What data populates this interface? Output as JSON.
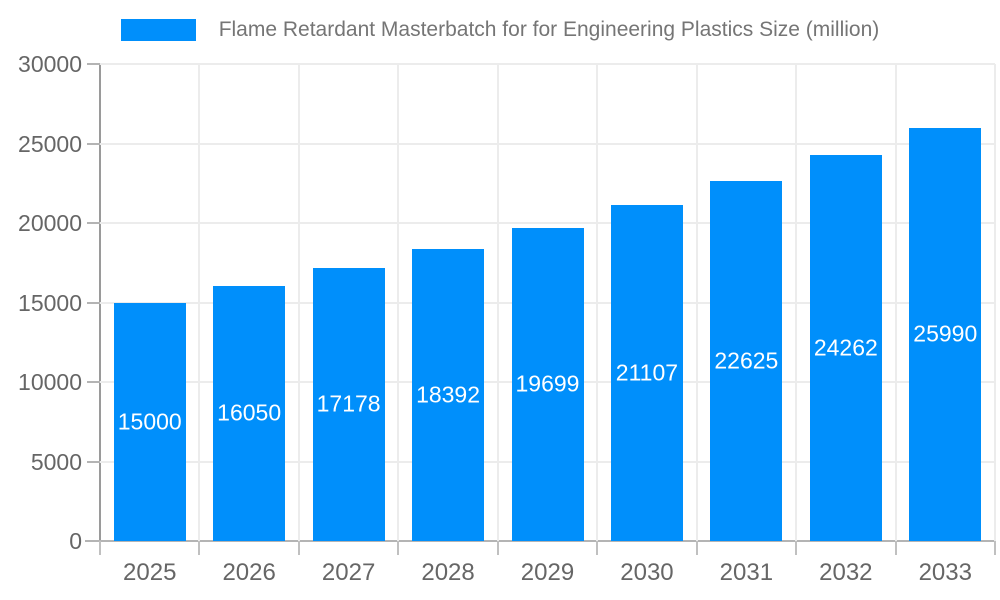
{
  "legend": {
    "label": "Flame Retardant Masterbatch for for Engineering Plastics Size (million)"
  },
  "chart_data": {
    "type": "bar",
    "title": "Flame Retardant Masterbatch for for Engineering Plastics Size (million)",
    "categories": [
      "2025",
      "2026",
      "2027",
      "2028",
      "2029",
      "2030",
      "2031",
      "2032",
      "2033"
    ],
    "values": [
      15000,
      16050,
      17178,
      18392,
      19699,
      21107,
      22625,
      24262,
      25990
    ],
    "xlabel": "",
    "ylabel": "",
    "ylim": [
      0,
      30000
    ],
    "yticks": [
      0,
      5000,
      10000,
      15000,
      20000,
      25000,
      30000
    ],
    "grid": true,
    "legend_position": "top",
    "colors": {
      "bar": "#008FFB",
      "bar_label_text": "#ffffff",
      "axis_text": "#666666",
      "legend_text": "#757575",
      "gridline": "#ececec",
      "axis_line": "#9a9a9a"
    }
  }
}
